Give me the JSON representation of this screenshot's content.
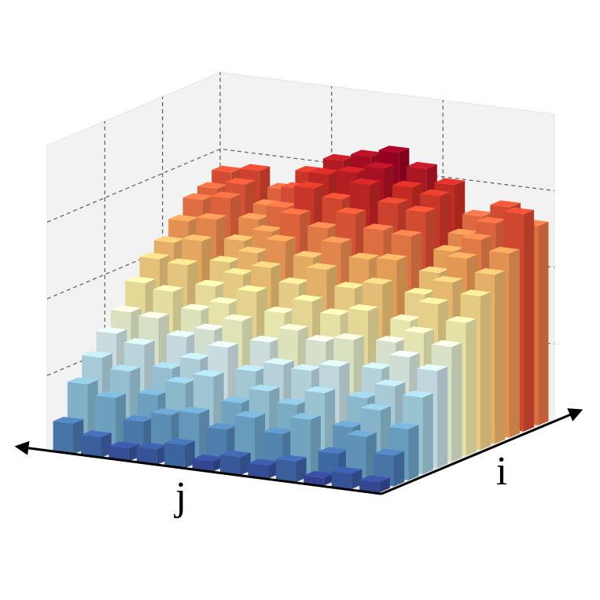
{
  "chart_data": {
    "type": "bar3d",
    "xlabel": "j",
    "ylabel": "i",
    "zlim": [
      0,
      1.2
    ],
    "zticks": [
      0.3,
      0.6,
      0.9
    ],
    "grid": true,
    "colormap": [
      "#313695",
      "#4575b4",
      "#74add1",
      "#abd9e9",
      "#e0f3f8",
      "#ffffbf",
      "#fee090",
      "#fdae61",
      "#f46d43",
      "#d73027",
      "#a50026"
    ],
    "values": [
      [
        0.04,
        0.06,
        0.03,
        0.08,
        0.05,
        0.07,
        0.04,
        0.09,
        0.06,
        0.05,
        0.08,
        0.12
      ],
      [
        0.12,
        0.18,
        0.1,
        0.22,
        0.15,
        0.2,
        0.14,
        0.19,
        0.17,
        0.13,
        0.21,
        0.25
      ],
      [
        0.2,
        0.26,
        0.18,
        0.3,
        0.24,
        0.28,
        0.22,
        0.31,
        0.27,
        0.21,
        0.29,
        0.33
      ],
      [
        0.3,
        0.33,
        0.27,
        0.38,
        0.35,
        0.36,
        0.32,
        0.4,
        0.34,
        0.29,
        0.37,
        0.4
      ],
      [
        0.38,
        0.42,
        0.36,
        0.46,
        0.44,
        0.47,
        0.41,
        0.48,
        0.43,
        0.39,
        0.45,
        0.46
      ],
      [
        0.45,
        0.49,
        0.44,
        0.55,
        0.52,
        0.56,
        0.5,
        0.57,
        0.51,
        0.47,
        0.53,
        0.55
      ],
      [
        0.52,
        0.58,
        0.5,
        0.63,
        0.6,
        0.66,
        0.59,
        0.64,
        0.6,
        0.54,
        0.61,
        0.62
      ],
      [
        0.6,
        0.64,
        0.58,
        0.7,
        0.69,
        0.74,
        0.67,
        0.72,
        0.66,
        0.61,
        0.68,
        0.66
      ],
      [
        0.66,
        0.71,
        0.64,
        0.77,
        0.78,
        0.83,
        0.76,
        0.8,
        0.72,
        0.67,
        0.74,
        0.72
      ],
      [
        0.72,
        0.76,
        0.7,
        0.84,
        0.86,
        0.92,
        0.85,
        0.88,
        0.79,
        0.73,
        0.8,
        0.78
      ],
      [
        0.85,
        0.8,
        0.74,
        0.88,
        0.9,
        0.96,
        0.93,
        0.91,
        0.84,
        0.76,
        0.83,
        0.8
      ],
      [
        0.78,
        0.84,
        0.79,
        0.9,
        0.95,
        1.0,
        0.97,
        0.94,
        0.88,
        0.8,
        0.86,
        0.84
      ]
    ]
  }
}
